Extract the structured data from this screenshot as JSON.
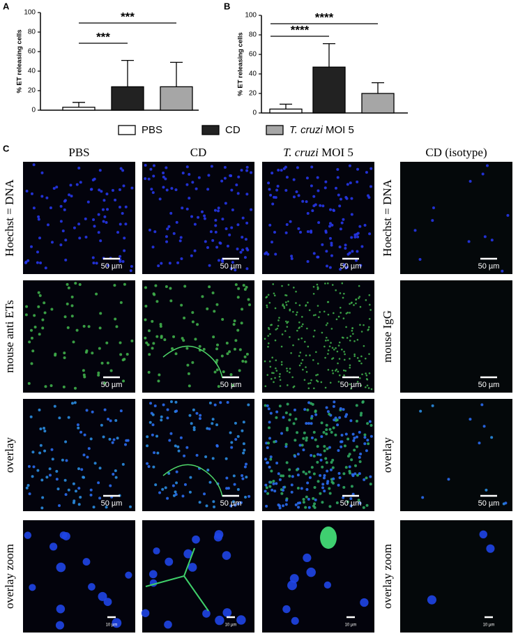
{
  "chart_data": [
    {
      "type": "bar",
      "panel": "A",
      "y_label": "% ET releasing cells",
      "categories": [
        null,
        null,
        null
      ],
      "values": [
        3,
        24,
        24
      ],
      "errors": [
        5,
        27,
        25
      ],
      "colors": [
        "#ffffff",
        "#222222",
        "#a6a6a6"
      ],
      "ylim": [
        0,
        100
      ],
      "yticks": [
        0,
        20,
        40,
        60,
        80,
        100
      ],
      "annotations": [
        "***",
        "***"
      ]
    },
    {
      "type": "bar",
      "panel": "B",
      "y_label": "% ET releasing cells",
      "categories": [
        null,
        null,
        null
      ],
      "values": [
        4,
        47,
        20
      ],
      "errors": [
        5,
        24,
        11
      ],
      "colors": [
        "#ffffff",
        "#222222",
        "#a6a6a6"
      ],
      "ylim": [
        0,
        100
      ],
      "yticks": [
        0,
        20,
        40,
        60,
        80,
        100
      ],
      "annotations": [
        "****",
        "****"
      ]
    }
  ],
  "legend": [
    {
      "name": "PBS",
      "color": "#ffffff"
    },
    {
      "name": "CD",
      "color": "#222222"
    },
    {
      "italic": "T. cruzi",
      "name": "MOI 5",
      "color": "#a6a6a6"
    }
  ],
  "panel_c": {
    "title": "C",
    "columns": [
      {
        "name": "PBS"
      },
      {
        "name": "CD"
      },
      {
        "italic": "T. cruzi",
        "name": "MOI 5"
      },
      {
        "name": "CD (isotype)"
      }
    ],
    "rows": [
      "Hoechst = DNA",
      "mouse anti ETs",
      "overlay",
      "overlay zoom"
    ],
    "right_rows": [
      "Hoechst = DNA",
      "mouse IgG",
      "overlay",
      "overlay zoom"
    ],
    "scale_bar_label": "50 µm",
    "zoom_scale_bar_label": "10 µm"
  }
}
